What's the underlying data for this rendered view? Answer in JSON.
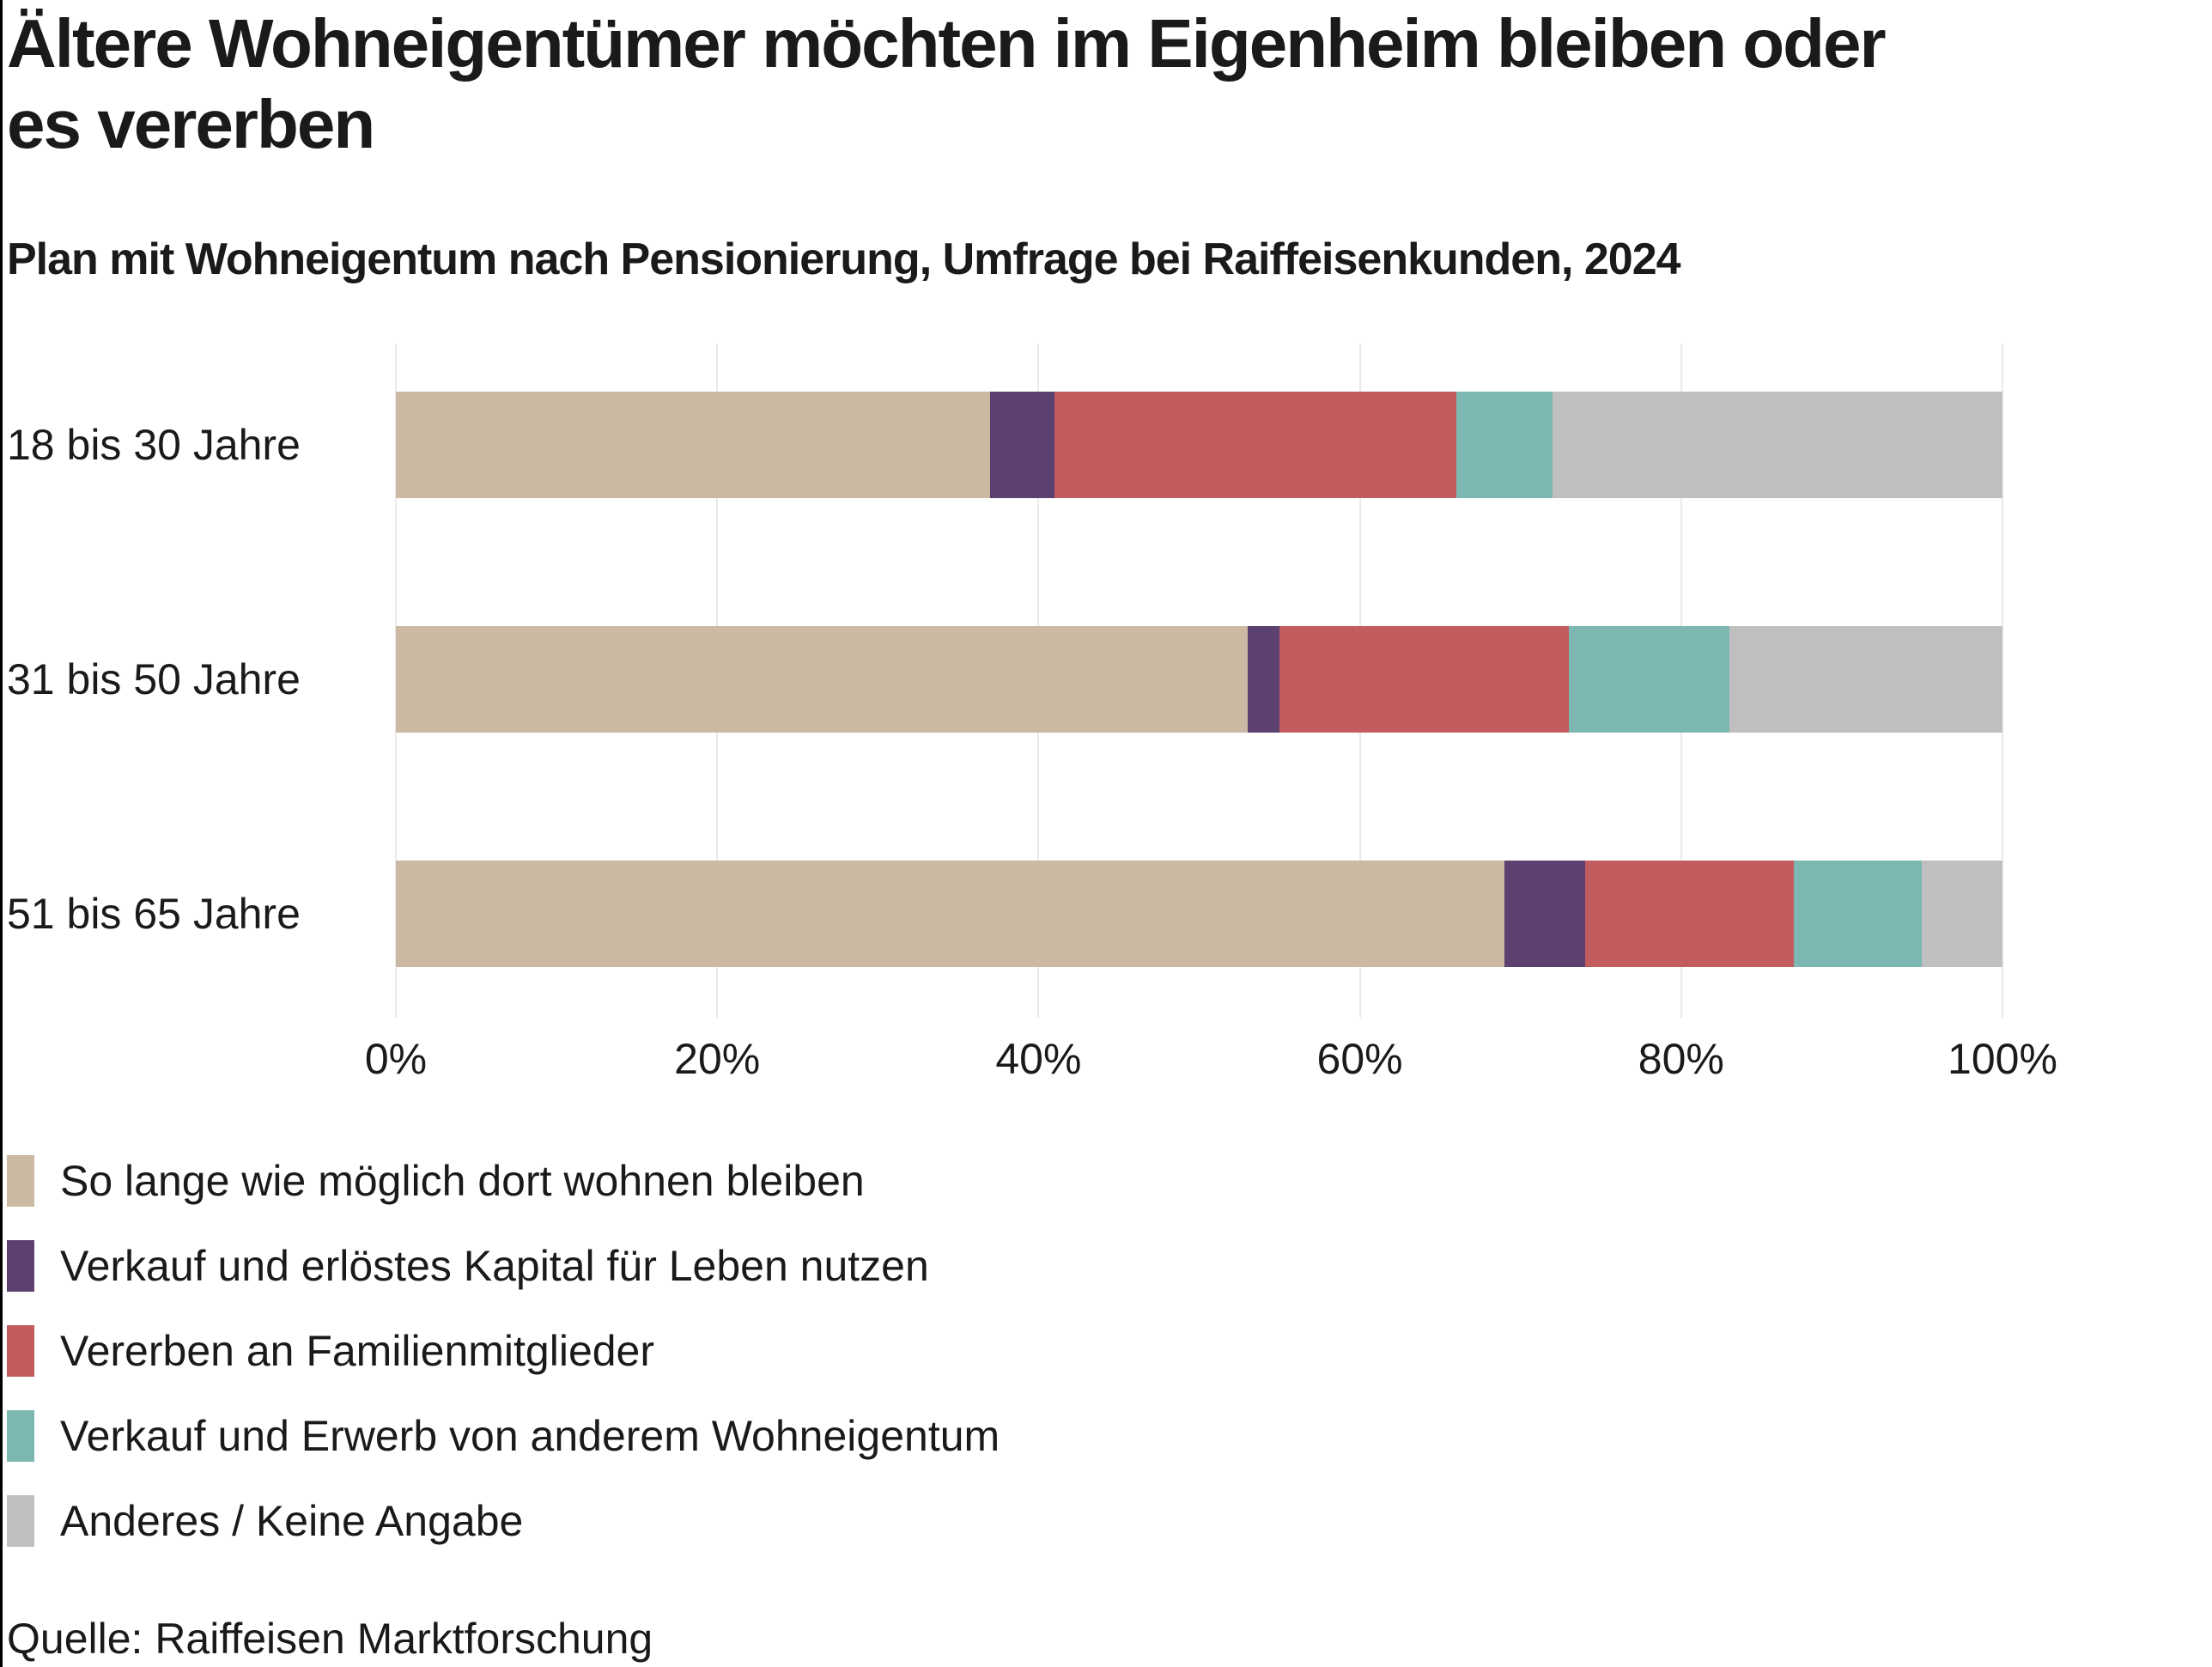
{
  "page": {
    "title_lines": [
      "Ältere Wohneigentümer möchten im Eigenheim bleiben oder",
      "es vererben"
    ],
    "subtitle": "Plan mit Wohneigentum nach Pensionierung, Umfrage bei Raiffeisenkunden, 2024",
    "source": "Quelle: Raiffeisen Marktforschung"
  },
  "colors": {
    "text": "#1a1a1a",
    "gridline": "#eaeaea",
    "left_edge_line": "#000000",
    "background": "#ffffff"
  },
  "chart_data": {
    "type": "bar",
    "orientation": "horizontal-stacked",
    "units": "percent",
    "title": "Ältere Wohneigentümer möchten im Eigenheim bleiben oder es vererben",
    "subtitle": "Plan mit Wohneigentum nach Pensionierung, Umfrage bei Raiffeisenkunden, 2024",
    "categories": [
      "18 bis 30 Jahre",
      "31 bis 50 Jahre",
      "51 bis 65 Jahre"
    ],
    "series": [
      {
        "name": "So lange wie möglich dort wohnen bleiben",
        "color": "#cbb9a3",
        "values": [
          37,
          53,
          69
        ]
      },
      {
        "name": "Verkauf und erlöstes Kapital für Leben nutzen",
        "color": "#5c4170",
        "values": [
          4,
          2,
          5
        ]
      },
      {
        "name": "Vererben an Familienmitglieder",
        "color": "#c25c5e",
        "values": [
          25,
          18,
          13
        ]
      },
      {
        "name": "Verkauf und Erwerb von anderem Wohneigentum",
        "color": "#7db7b1",
        "values": [
          6,
          10,
          8
        ]
      },
      {
        "name": "Anderes / Keine Angabe",
        "color": "#bfbfbf",
        "values": [
          28,
          17,
          5
        ]
      }
    ],
    "x_ticks": [
      "0%",
      "20%",
      "40%",
      "60%",
      "80%",
      "100%"
    ],
    "xlim": [
      0,
      100
    ],
    "grid": true,
    "legend_position": "bottom-left",
    "source": "Quelle: Raiffeisen Marktforschung"
  }
}
